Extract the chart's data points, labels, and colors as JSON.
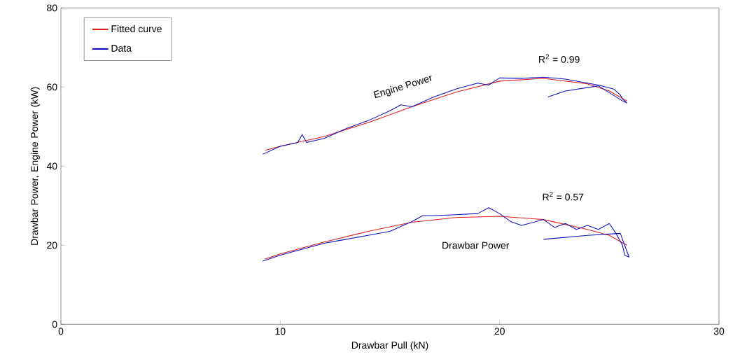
{
  "chart_data": {
    "type": "line",
    "xlabel": "Drawbar Pull (kN)",
    "ylabel": "Drawbar Power, Engine Power (kW)",
    "xlim": [
      0,
      30
    ],
    "ylim": [
      0,
      80
    ],
    "xticks": [
      0,
      10,
      20,
      30
    ],
    "yticks": [
      0,
      20,
      40,
      60,
      80
    ],
    "legend": "top left",
    "grid": false,
    "marker": "none",
    "line_style": "solid",
    "series": [
      {
        "name": "Fitted curve",
        "color": "#e02020",
        "x": [
          9.3,
          10,
          12,
          14,
          16,
          18,
          20,
          22,
          24,
          25,
          25.8
        ],
        "values": [
          44,
          45,
          47.5,
          51,
          55,
          58.7,
          61.5,
          62.2,
          60.8,
          59,
          56.5
        ]
      },
      {
        "name": "Data",
        "color": "#1010c0",
        "x": [
          9.2,
          10,
          10.8,
          11,
          11.2,
          12,
          13,
          14,
          15,
          15.5,
          16,
          17,
          18,
          19,
          19.5,
          20,
          21,
          22,
          23,
          24,
          24.5,
          25.2,
          25.5,
          25.6,
          25.8,
          25.6,
          24.5,
          23,
          22.2
        ],
        "values": [
          43,
          45,
          46,
          48,
          46,
          47,
          49.5,
          51.5,
          54,
          55.5,
          55,
          57.5,
          59.5,
          61,
          60.5,
          62.3,
          62.2,
          62.5,
          62,
          61,
          60.5,
          59.5,
          58,
          57,
          56,
          56.5,
          60.3,
          59,
          57.5
        ]
      },
      {
        "color": "#e02020",
        "x": [
          9.3,
          10,
          12,
          14,
          16,
          18,
          20,
          22,
          24,
          25,
          25.8
        ],
        "values": [
          16.5,
          17.8,
          20.8,
          23.5,
          25.8,
          27,
          27.3,
          26.5,
          24,
          22.5,
          20
        ]
      },
      {
        "color": "#1010c0",
        "x": [
          9.2,
          10,
          11,
          12,
          13,
          14,
          15,
          16,
          16.5,
          17,
          18,
          19,
          19.5,
          20,
          20.5,
          21,
          22,
          22.5,
          23,
          23.5,
          24,
          24.5,
          25,
          25.3,
          25.6,
          25.7,
          25.9,
          25.5,
          24,
          22
        ],
        "values": [
          16,
          17.5,
          19,
          20.5,
          21.5,
          22.5,
          23.5,
          26,
          27.5,
          27.5,
          27.7,
          28,
          29.5,
          28,
          26,
          25,
          26.5,
          24.5,
          25.5,
          24,
          25,
          24,
          25.5,
          23,
          20,
          17.5,
          17,
          23,
          22.5,
          21.5
        ]
      }
    ],
    "annotations": [
      "Engine Power",
      "R$^{2}$ = 0.99",
      "R$^{2}$ = 0.57",
      "Drawbar Power"
    ]
  }
}
